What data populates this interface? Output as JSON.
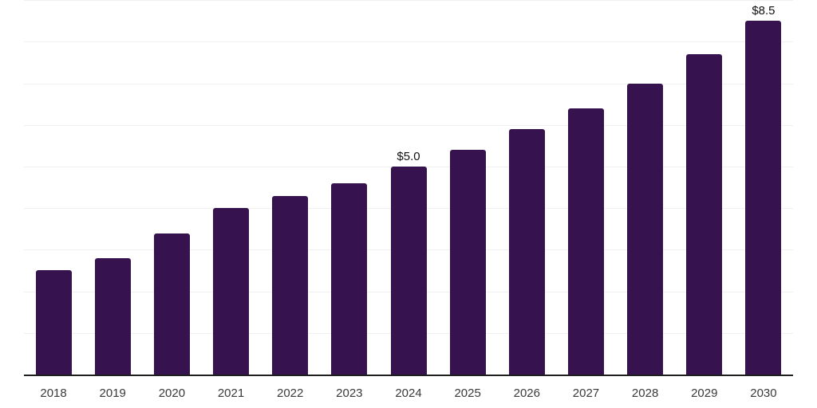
{
  "chart_data": {
    "type": "bar",
    "title": "",
    "xlabel": "",
    "ylabel": "",
    "categories": [
      "2018",
      "2019",
      "2020",
      "2021",
      "2022",
      "2023",
      "2024",
      "2025",
      "2026",
      "2027",
      "2028",
      "2029",
      "2030"
    ],
    "values": [
      2.5,
      2.8,
      3.4,
      4.0,
      4.3,
      4.6,
      5.0,
      5.4,
      5.9,
      6.4,
      7.0,
      7.7,
      8.5
    ],
    "bar_labels": [
      "",
      "",
      "",
      "",
      "",
      "",
      "$5.0",
      "",
      "",
      "",
      "",
      "",
      "$8.5"
    ],
    "ylim": [
      0,
      9
    ],
    "gridline_step": 1,
    "grid": "horizontal",
    "legend": "none",
    "y_tick_labels_visible": false,
    "colors": {
      "bar": "#36134e",
      "grid_line": "#f0f0f0",
      "axis_line": "#1f1f1f",
      "tick_label": "#3a3a3a",
      "bar_label": "#111111",
      "background": "#ffffff"
    }
  }
}
